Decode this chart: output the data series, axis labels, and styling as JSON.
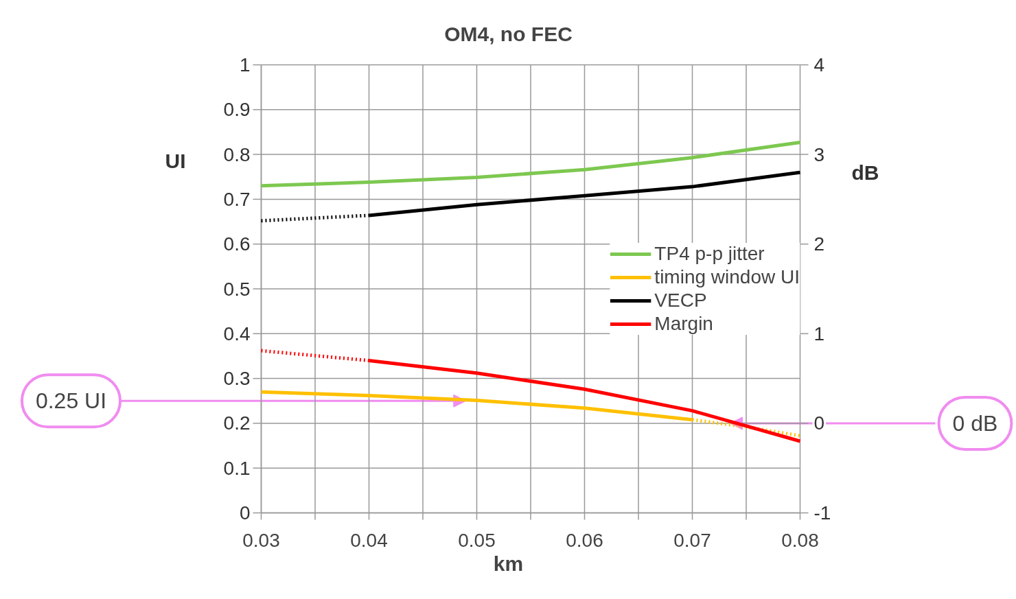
{
  "chart_data": {
    "type": "line",
    "title": "OM4, no FEC",
    "xlabel": "km",
    "ylabel": "UI",
    "y2label": "dB",
    "x": [
      0.03,
      0.04,
      0.05,
      0.06,
      0.07,
      0.08
    ],
    "series": [
      {
        "name": "TP4 p-p jitter",
        "color": "#7dc850",
        "values": [
          0.73,
          0.738,
          0.749,
          0.766,
          0.793,
          0.827
        ]
      },
      {
        "name": "timing window UI",
        "color": "#ffc000",
        "x": [
          0.03,
          0.04,
          0.05,
          0.06,
          0.07
        ],
        "values": [
          0.27,
          0.262,
          0.251,
          0.234,
          0.208
        ]
      },
      {
        "color": "#ffc000",
        "line_style": "dotted",
        "x": [
          0.07,
          0.075,
          0.08
        ],
        "values": [
          0.208,
          0.192,
          0.172
        ]
      },
      {
        "name": "VECP",
        "color": "#000000",
        "axis": "y2",
        "x": [
          0.04,
          0.05,
          0.06,
          0.07,
          0.08
        ],
        "values": [
          2.32,
          2.44,
          2.54,
          2.64,
          2.8
        ]
      },
      {
        "color": "#000000",
        "axis": "y2",
        "line_style": "dotted",
        "x": [
          0.03,
          0.04
        ],
        "values": [
          2.26,
          2.32
        ]
      },
      {
        "name": "Margin",
        "color": "#ff0000",
        "axis": "y2",
        "x": [
          0.04,
          0.05,
          0.06,
          0.07,
          0.08
        ],
        "values": [
          0.7,
          0.56,
          0.38,
          0.14,
          -0.2
        ]
      },
      {
        "color": "#ff0000",
        "axis": "y2",
        "line_style": "dotted",
        "x": [
          0.03,
          0.04
        ],
        "values": [
          0.81,
          0.7
        ]
      }
    ],
    "xlim": [
      0.03,
      0.08
    ],
    "xticks": [
      0.03,
      {
        "value": 0.035,
        "label": null
      },
      0.04,
      {
        "value": 0.045,
        "label": null
      },
      0.05,
      {
        "value": 0.055,
        "label": null
      },
      0.06,
      {
        "value": 0.065,
        "label": null
      },
      0.07,
      {
        "value": 0.075,
        "label": null
      },
      0.08
    ],
    "ylim": [
      0,
      1
    ],
    "yticks": [
      0,
      0.1,
      0.2,
      0.3,
      0.4,
      0.5,
      0.6,
      0.7,
      0.8,
      0.9,
      1
    ],
    "y2lim": [
      -1,
      4
    ],
    "y2ticks": [
      -1,
      0,
      1,
      2,
      3,
      4
    ],
    "grid": true,
    "legend": "right",
    "line_style": "solid",
    "marker": "none",
    "annotations": [
      {
        "text": "0.25 UI",
        "x": 0.049,
        "y": 0.25
      },
      {
        "text": "0 dB",
        "x": 0.0735,
        "y": 0.2
      }
    ]
  }
}
